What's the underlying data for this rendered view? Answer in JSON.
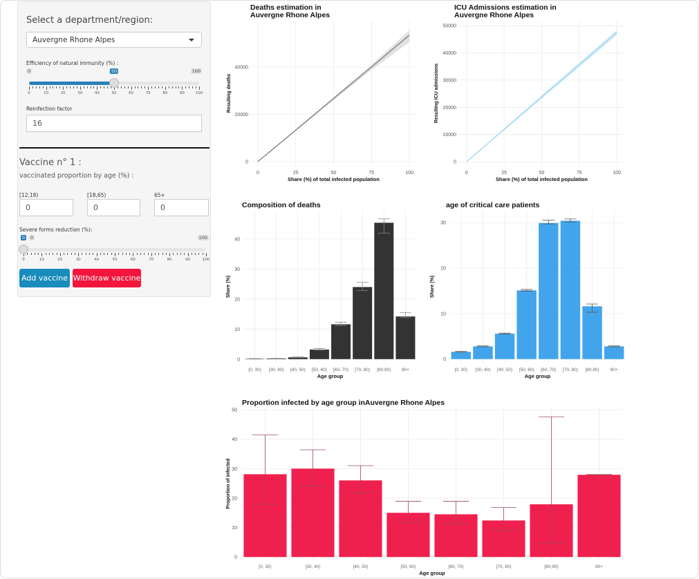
{
  "sidebar": {
    "region_label": "Select a department/region:",
    "region_value": "Auvergne Rhone Alpes",
    "immunity": {
      "label": "Efficiency of natural immunity (%) :",
      "min": "0",
      "max": "100",
      "value": 50,
      "value_label": "50",
      "tick_labels": [
        "0",
        "10",
        "20",
        "30",
        "40",
        "50",
        "60",
        "70",
        "80",
        "90",
        "100"
      ]
    },
    "reinfection": {
      "label": "Reinfection factor",
      "value": "16"
    },
    "vaccine_title": "Vaccine n° 1 :",
    "vaccine_subtitle": "vaccinated proportion by age (%) :",
    "age_inputs": [
      {
        "label": "[12,18)",
        "value": "0"
      },
      {
        "label": "[18,65)",
        "value": "0"
      },
      {
        "label": "65+",
        "value": "0"
      }
    ],
    "severe": {
      "label": "Severe forms reduction (%):",
      "min": "0",
      "max": "100",
      "value": 0,
      "value_label": "0",
      "tick_labels": [
        "0",
        "10",
        "20",
        "30",
        "40",
        "50",
        "60",
        "70",
        "80",
        "90",
        "100"
      ]
    },
    "add_label": "Add vaccine",
    "withdraw_label": "Withdraw vaccine",
    "colors": {
      "add": "#1a8bbd",
      "withdraw": "#f2153c",
      "slider": "#2c7fb8"
    }
  },
  "chart_data": [
    {
      "type": "line",
      "title": [
        "Deaths estimation in",
        "Auvergne Rhone Alpes"
      ],
      "xlabel": "Share (%) of total infected population",
      "ylabel": "Resulting deaths",
      "x": [
        0,
        25,
        50,
        75,
        100
      ],
      "y": [
        0,
        13300,
        26700,
        40000,
        53500
      ],
      "ribbon_low": [
        0,
        13000,
        26000,
        38800,
        50500
      ],
      "ribbon_high": [
        0,
        13600,
        27300,
        41000,
        55500
      ],
      "xticks": [
        0,
        25,
        50,
        75,
        100
      ],
      "yticks": [
        0,
        20000,
        40000
      ],
      "xlim": [
        -5,
        105
      ],
      "ylim": [
        -1800,
        59600
      ],
      "grid": true,
      "color": "#777777",
      "ribbon_color": "#d9d9d9"
    },
    {
      "type": "line",
      "title": [
        "ICU Admissions estimation in",
        "Auvergne Rhone Alpes"
      ],
      "xlabel": "Share (%) of total infected population",
      "ylabel": "Resulting ICU admissions",
      "x": [
        0,
        25,
        50,
        75,
        100
      ],
      "y": [
        0,
        11900,
        23800,
        35600,
        47500
      ],
      "ribbon_low": [
        0,
        11600,
        23200,
        34800,
        46500
      ],
      "ribbon_high": [
        0,
        12200,
        24400,
        36400,
        48400
      ],
      "xticks": [
        0,
        25,
        50,
        75,
        100
      ],
      "yticks": [
        0,
        10000,
        20000,
        30000,
        40000,
        50000
      ],
      "xlim": [
        -5,
        105
      ],
      "ylim": [
        -1500,
        51800
      ],
      "grid": true,
      "color": "#8fd3f0",
      "ribbon_color": "#cdebf8"
    },
    {
      "type": "bar",
      "title": [
        "Composition of deaths"
      ],
      "xlabel": "Age group",
      "ylabel": "Share (%)",
      "categories": [
        "[0, 30)",
        "[30, 40)",
        "[40, 50)",
        "[50, 60)",
        "[60, 70)",
        "[70, 80)",
        "[80,90)",
        "90+"
      ],
      "values": [
        0.1,
        0.2,
        0.6,
        3.2,
        11.6,
        24.0,
        45.4,
        14.2
      ],
      "err_low": [
        0.0,
        0.1,
        0.5,
        3.0,
        11.2,
        22.8,
        41.9,
        13.8
      ],
      "err_high": [
        0.2,
        0.3,
        0.8,
        3.5,
        12.3,
        25.6,
        46.7,
        15.5
      ],
      "yticks": [
        0,
        10,
        20,
        30,
        40
      ],
      "ylim": [
        -1.2,
        49.4
      ],
      "grid": true,
      "color": "#333333",
      "err_color": "#888888"
    },
    {
      "type": "bar",
      "title": [
        "age of critical care patients"
      ],
      "xlabel": "Age group",
      "ylabel": "Share (%)",
      "categories": [
        "[0, 30)",
        "[30, 40)",
        "[40, 50)",
        "[50, 60)",
        "[60, 70)",
        "[70, 80)",
        "[80,90)",
        "90+"
      ],
      "values": [
        1.6,
        2.8,
        5.6,
        15.1,
        29.9,
        30.4,
        11.6,
        2.8
      ],
      "err_low": [
        1.5,
        2.7,
        5.5,
        14.9,
        29.7,
        30.1,
        10.3,
        2.7
      ],
      "err_high": [
        1.7,
        2.9,
        5.7,
        15.3,
        30.5,
        30.8,
        12.1,
        2.9
      ],
      "yticks": [
        0,
        10,
        20,
        30
      ],
      "ylim": [
        -0.8,
        32.6
      ],
      "grid": true,
      "color": "#42a5ec",
      "err_color": "#555555"
    },
    {
      "type": "bar",
      "title": [
        "Proportion infected by age group inAuvergne Rhone Alpes"
      ],
      "xlabel": "Age group",
      "ylabel": "Proportion of infected",
      "categories": [
        "[0, 30)",
        "[30, 40)",
        "[40, 50)",
        "[50, 60)",
        "[60, 70)",
        "[70, 80)",
        "[80,90)",
        "90+"
      ],
      "values": [
        28.1,
        30.0,
        26.0,
        15.0,
        14.5,
        12.4,
        17.9,
        27.9
      ],
      "err_low": [
        17.9,
        24.1,
        21.7,
        11.7,
        11.3,
        9.0,
        4.8,
        27.9
      ],
      "err_high": [
        41.5,
        36.4,
        31.0,
        18.9,
        18.9,
        16.8,
        47.6,
        28.0
      ],
      "yticks": [
        0,
        10,
        20,
        30,
        40,
        50
      ],
      "ylim": [
        -0.9,
        50.7
      ],
      "grid": true,
      "color": "#f0204e",
      "err_color": "#9a4a5a"
    }
  ]
}
